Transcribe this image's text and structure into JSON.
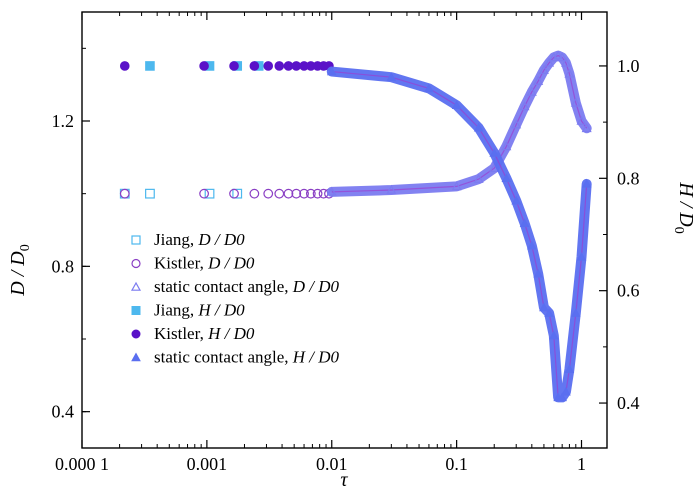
{
  "chart_data": {
    "type": "scatter",
    "x_axis": {
      "label": "τ",
      "scale": "log",
      "range": [
        0.0001,
        1.6
      ],
      "ticks": [
        {
          "value": 0.0001,
          "label": "0.000 1"
        },
        {
          "value": 0.001,
          "label": "0.001"
        },
        {
          "value": 0.01,
          "label": "0.01"
        },
        {
          "value": 0.1,
          "label": "0.1"
        },
        {
          "value": 1,
          "label": "1"
        }
      ]
    },
    "y_left": {
      "label": "D / D0",
      "range": [
        0.3,
        1.5
      ],
      "ticks": [
        {
          "value": 0.4,
          "label": "0.4"
        },
        {
          "value": 0.8,
          "label": "0.8"
        },
        {
          "value": 1.2,
          "label": "1.2"
        }
      ]
    },
    "y_right": {
      "label": "H / D0",
      "range": [
        0.32,
        1.096
      ],
      "ticks": [
        {
          "value": 0.4,
          "label": "0.4"
        },
        {
          "value": 0.6,
          "label": "0.6"
        },
        {
          "value": 0.8,
          "label": "0.8"
        },
        {
          "value": 1.0,
          "label": "1.0"
        }
      ]
    },
    "legend": {
      "placement": "bottom-left",
      "entries": [
        {
          "text": "Jiang, ",
          "var": "D / D0",
          "marker": "square-open",
          "color": "#4db8ee"
        },
        {
          "text": "Kistler, ",
          "var": "D / D0",
          "marker": "circle-open",
          "color": "#8a3fc4"
        },
        {
          "text": "static contact angle, ",
          "var": "D / D0",
          "marker": "triangle-open",
          "color": "#7b7bf0"
        },
        {
          "text": "Jiang, ",
          "var": "H / D0",
          "marker": "square-filled",
          "color": "#4db8ee"
        },
        {
          "text": "Kistler, ",
          "var": "H / D0",
          "marker": "circle-filled",
          "color": "#5a12c8"
        },
        {
          "text": "static contact angle, ",
          "var": "H / D0",
          "marker": "triangle-filled",
          "color": "#5a6ff0"
        }
      ]
    },
    "series": [
      {
        "name": "Jiang, D/D0",
        "axis": "left",
        "marker": "square-open",
        "color": "#4db8ee",
        "x": [
          0.00022,
          0.00035,
          0.00105,
          0.00175
        ],
        "y": [
          1.0,
          1.0,
          1.0,
          1.0
        ]
      },
      {
        "name": "Kistler, D/D0",
        "axis": "left",
        "marker": "circle-open",
        "color": "#8a3fc4",
        "x": [
          0.00022,
          0.00095,
          0.00165,
          0.0024,
          0.0031,
          0.0038,
          0.0045,
          0.0052,
          0.006,
          0.0068,
          0.0077,
          0.0086,
          0.0095
        ],
        "y": [
          1.0,
          1.0,
          1.0,
          1.0,
          1.0,
          1.0,
          1.0,
          1.0,
          1.0,
          1.0,
          1.0,
          1.0,
          1.0
        ]
      },
      {
        "name": "Jiang, H/D0",
        "axis": "right",
        "marker": "square-filled",
        "color": "#4db8ee",
        "x": [
          0.00035,
          0.00105,
          0.00175,
          0.0026
        ],
        "y": [
          1.0,
          1.0,
          1.0,
          1.0
        ]
      },
      {
        "name": "Kistler, H/D0",
        "axis": "right",
        "marker": "circle-filled",
        "color": "#5a12c8",
        "x": [
          0.00022,
          0.00095,
          0.00165,
          0.0024,
          0.0031,
          0.0038,
          0.0045,
          0.0052,
          0.006,
          0.0068,
          0.0077,
          0.0086,
          0.0095
        ],
        "y": [
          1.0,
          1.0,
          1.0,
          1.0,
          1.0,
          1.0,
          1.0,
          1.0,
          1.0,
          1.0,
          1.0,
          1.0,
          1.0
        ]
      },
      {
        "name": "static contact angle, D/D0",
        "axis": "left",
        "marker": "triangle-open",
        "color": "#7b7bf0",
        "x": [
          0.01,
          0.03,
          0.1,
          0.15,
          0.2,
          0.25,
          0.3,
          0.35,
          0.4,
          0.45,
          0.5,
          0.55,
          0.6,
          0.65,
          0.7,
          0.75,
          0.8,
          0.9,
          1.0,
          1.1
        ],
        "y": [
          1.005,
          1.01,
          1.02,
          1.04,
          1.07,
          1.13,
          1.19,
          1.24,
          1.28,
          1.31,
          1.34,
          1.36,
          1.375,
          1.38,
          1.375,
          1.36,
          1.33,
          1.25,
          1.2,
          1.18
        ]
      },
      {
        "name": "static contact angle, H/D0",
        "axis": "right",
        "marker": "triangle-filled",
        "color": "#5a6ff0",
        "x": [
          0.01,
          0.03,
          0.06,
          0.1,
          0.15,
          0.2,
          0.25,
          0.3,
          0.35,
          0.4,
          0.45,
          0.5,
          0.55,
          0.6,
          0.65,
          0.7,
          0.75,
          0.8,
          0.9,
          1.0,
          1.1
        ],
        "y": [
          0.99,
          0.98,
          0.96,
          0.93,
          0.89,
          0.845,
          0.8,
          0.76,
          0.72,
          0.68,
          0.63,
          0.57,
          0.56,
          0.52,
          0.41,
          0.41,
          0.42,
          0.46,
          0.56,
          0.66,
          0.79
        ]
      }
    ]
  }
}
